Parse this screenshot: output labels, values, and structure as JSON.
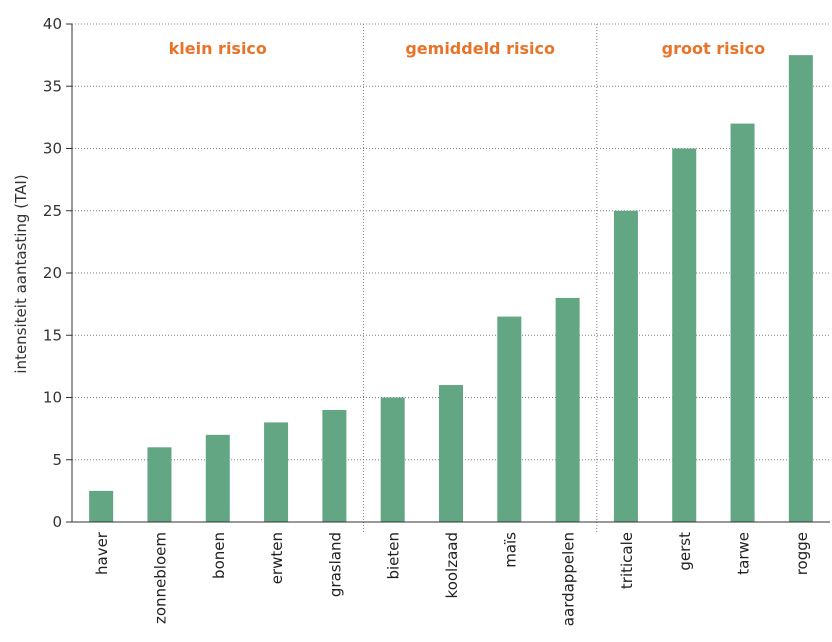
{
  "colors": {
    "bar": "#63a683",
    "zone_label": "#e8742a",
    "grid": "#808080",
    "axis": "#333333"
  },
  "chart_data": {
    "type": "bar",
    "ylabel": "intensiteit aantasting (TAI)",
    "ylim": [
      0,
      40
    ],
    "yticks": [
      0,
      5,
      10,
      15,
      20,
      25,
      30,
      35,
      40
    ],
    "grid": true,
    "categories": [
      "haver",
      "zonnebloem",
      "bonen",
      "erwten",
      "grasland",
      "bieten",
      "koolzaad",
      "maïs",
      "aardappelen",
      "triticale",
      "gerst",
      "tarwe",
      "rogge"
    ],
    "values": [
      2.5,
      6,
      7,
      8,
      9,
      10,
      11,
      16.5,
      18,
      25,
      30,
      32,
      37.5
    ],
    "groups": [
      {
        "label": "klein risico",
        "start": 0,
        "end": 4
      },
      {
        "label": "gemiddeld risico",
        "start": 5,
        "end": 8
      },
      {
        "label": "groot risico",
        "start": 9,
        "end": 12
      }
    ]
  }
}
